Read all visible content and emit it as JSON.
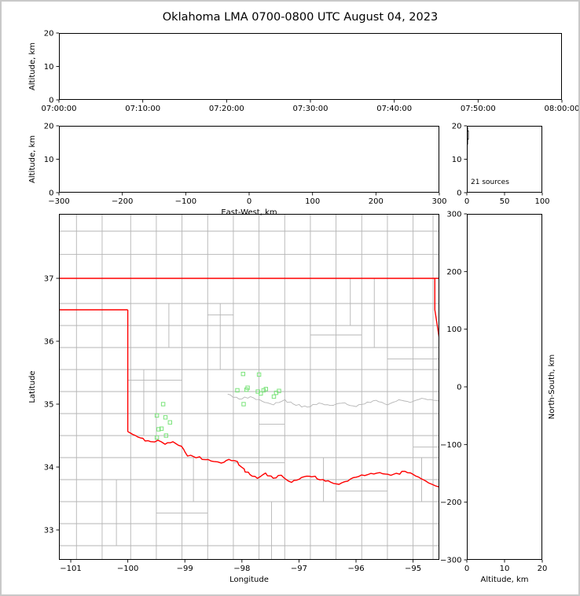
{
  "title": "Oklahoma LMA 0700-0800 UTC August 04, 2023",
  "colors": {
    "frame": "#000000",
    "county_line": "#b5b5b5",
    "state_border": "#ff0000",
    "source_marker": "#7be37b",
    "histogram_line": "#000000"
  },
  "chart_data": [
    {
      "id": "time_height",
      "type": "scatter",
      "xlabel": "",
      "ylabel": "Altitude, km",
      "xlim": [
        0,
        6
      ],
      "ylim": [
        0,
        20
      ],
      "xticks": [
        0,
        1,
        2,
        3,
        4,
        5,
        6
      ],
      "xtick_labels": [
        "07:00:00",
        "07:10:00",
        "07:20:00",
        "07:30:00",
        "07:40:00",
        "07:50:00",
        "08:00:00"
      ],
      "yticks": [
        0,
        10,
        20
      ],
      "points": []
    },
    {
      "id": "ew_height",
      "type": "scatter",
      "xlabel": "East-West, km",
      "ylabel": "Altitude, km",
      "xlim": [
        -300,
        300
      ],
      "ylim": [
        0,
        20
      ],
      "xticks": [
        -300,
        -200,
        -100,
        0,
        100,
        200,
        300
      ],
      "yticks": [
        0,
        10,
        20
      ],
      "points": []
    },
    {
      "id": "alt_histogram",
      "type": "line",
      "annotation": "21 sources",
      "xlim": [
        0,
        100
      ],
      "ylim": [
        0,
        20
      ],
      "xticks": [
        0,
        50,
        100
      ],
      "yticks": [
        0,
        10,
        20
      ],
      "line_count_alt": [
        [
          0,
          0
        ],
        [
          0,
          14.5
        ],
        [
          1,
          14.5
        ],
        [
          1,
          16
        ],
        [
          2,
          16
        ],
        [
          2,
          18.5
        ],
        [
          1,
          18.5
        ],
        [
          1,
          19.5
        ],
        [
          0,
          19.5
        ],
        [
          0,
          20
        ]
      ]
    },
    {
      "id": "plan_view",
      "type": "scatter",
      "xlabel": "Longitude",
      "ylabel": "Latitude",
      "xlim": [
        -101.207,
        -94.54
      ],
      "ylim": [
        32.525,
        38.025
      ],
      "xticks": [
        -101,
        -100,
        -99,
        -98,
        -97,
        -96,
        -95
      ],
      "yticks": [
        33,
        34,
        35,
        36,
        37
      ],
      "sources_lonlat": [
        [
          -97.98,
          35.48
        ],
        [
          -97.7,
          35.47
        ],
        [
          -98.08,
          35.22
        ],
        [
          -97.9,
          35.26
        ],
        [
          -97.72,
          35.2
        ],
        [
          -97.58,
          35.24
        ],
        [
          -97.35,
          35.21
        ],
        [
          -97.44,
          35.12
        ],
        [
          -97.97,
          35.0
        ],
        [
          -97.62,
          35.22
        ],
        [
          -97.67,
          35.17
        ],
        [
          -97.92,
          35.23
        ],
        [
          -97.4,
          35.18
        ],
        [
          -99.38,
          35.0
        ],
        [
          -99.49,
          34.82
        ],
        [
          -99.34,
          34.79
        ],
        [
          -99.26,
          34.71
        ],
        [
          -99.46,
          34.6
        ],
        [
          -99.33,
          34.5
        ],
        [
          -99.49,
          34.47
        ],
        [
          -99.41,
          34.61
        ]
      ],
      "state_border": [
        {
          "name": "kansas-line",
          "pts": [
            [
              -101.21,
              37.0
            ],
            [
              -94.54,
              37.0
            ]
          ]
        },
        {
          "name": "missouri-arkansas-line",
          "pts": [
            [
              -94.618,
              37.0
            ],
            [
              -94.618,
              36.5
            ],
            [
              -94.54,
              36.04
            ]
          ]
        },
        {
          "name": "panhandle-south-line",
          "pts": [
            [
              -101.21,
              36.5
            ],
            [
              -100.0,
              36.5
            ]
          ]
        },
        {
          "name": "west-border-line",
          "pts": [
            [
              -100.0,
              36.5
            ],
            [
              -100.0,
              34.563
            ]
          ]
        },
        {
          "name": "red-river-border",
          "wiggle": true,
          "pts": [
            [
              -100.0,
              34.563
            ],
            [
              -99.87,
              34.5
            ],
            [
              -99.74,
              34.44
            ],
            [
              -99.6,
              34.4
            ],
            [
              -99.47,
              34.43
            ],
            [
              -99.35,
              34.37
            ],
            [
              -99.21,
              34.4
            ],
            [
              -99.06,
              34.33
            ],
            [
              -98.95,
              34.19
            ],
            [
              -98.8,
              34.16
            ],
            [
              -98.64,
              34.12
            ],
            [
              -98.49,
              34.1
            ],
            [
              -98.36,
              34.06
            ],
            [
              -98.23,
              34.12
            ],
            [
              -98.09,
              34.08
            ],
            [
              -97.97,
              33.96
            ],
            [
              -97.86,
              33.88
            ],
            [
              -97.73,
              33.82
            ],
            [
              -97.59,
              33.9
            ],
            [
              -97.45,
              33.82
            ],
            [
              -97.31,
              33.87
            ],
            [
              -97.18,
              33.76
            ],
            [
              -97.04,
              33.79
            ],
            [
              -96.91,
              33.85
            ],
            [
              -96.77,
              33.86
            ],
            [
              -96.63,
              33.8
            ],
            [
              -96.49,
              33.78
            ],
            [
              -96.35,
              33.72
            ],
            [
              -96.2,
              33.76
            ],
            [
              -96.05,
              33.83
            ],
            [
              -95.9,
              33.86
            ],
            [
              -95.74,
              33.89
            ],
            [
              -95.58,
              33.91
            ],
            [
              -95.44,
              33.87
            ],
            [
              -95.29,
              33.89
            ],
            [
              -95.14,
              33.93
            ],
            [
              -95.0,
              33.88
            ],
            [
              -94.86,
              33.82
            ],
            [
              -94.73,
              33.75
            ],
            [
              -94.6,
              33.71
            ],
            [
              -94.53,
              33.68
            ]
          ]
        }
      ],
      "rivers": [
        {
          "name": "canadian-river",
          "wiggle": true,
          "pts": [
            [
              -98.25,
              35.16
            ],
            [
              -98.05,
              35.08
            ],
            [
              -97.85,
              35.12
            ],
            [
              -97.65,
              35.04
            ],
            [
              -97.45,
              35.0
            ],
            [
              -97.25,
              35.06
            ],
            [
              -97.05,
              34.99
            ],
            [
              -96.85,
              34.95
            ],
            [
              -96.65,
              35.02
            ],
            [
              -96.45,
              34.97
            ],
            [
              -96.25,
              35.03
            ],
            [
              -96.05,
              34.96
            ],
            [
              -95.85,
              35.01
            ],
            [
              -95.65,
              35.06
            ],
            [
              -95.45,
              34.99
            ],
            [
              -95.25,
              35.07
            ],
            [
              -95.05,
              35.03
            ],
            [
              -94.85,
              35.09
            ],
            [
              -94.54,
              35.05
            ]
          ]
        }
      ],
      "counties": {
        "h_full": [
          32.75,
          33.1,
          33.45,
          33.8,
          34.15,
          34.5,
          34.85,
          35.2,
          35.55,
          35.9,
          36.25,
          36.6,
          37.38,
          37.75
        ],
        "v_full": [
          -100.9,
          -100.45,
          -99.95,
          -99.5,
          -99.05,
          -98.6,
          -98.15,
          -97.7,
          -97.25,
          -96.8,
          -96.35,
          -95.9,
          -95.45,
          -95.0,
          -94.65
        ],
        "h_partial": [
          {
            "y": 34.07,
            "x1": -98.15,
            "x2": -97.25
          },
          {
            "y": 35.38,
            "x1": -100.0,
            "x2": -99.05
          },
          {
            "y": 36.1,
            "x1": -96.8,
            "x2": -95.9
          },
          {
            "y": 33.62,
            "x1": -96.35,
            "x2": -95.45
          },
          {
            "y": 36.42,
            "x1": -98.6,
            "x2": -98.15
          },
          {
            "y": 33.27,
            "x1": -99.5,
            "x2": -98.6
          },
          {
            "y": 35.72,
            "x1": -95.45,
            "x2": -94.55
          },
          {
            "y": 34.32,
            "x1": -95.0,
            "x2": -94.55
          },
          {
            "y": 34.68,
            "x1": -97.7,
            "x2": -97.25
          }
        ],
        "v_partial": [
          {
            "x": -99.72,
            "y1": 34.5,
            "y2": 35.55
          },
          {
            "x": -98.38,
            "y1": 35.55,
            "y2": 36.6
          },
          {
            "x": -97.48,
            "y1": 32.53,
            "y2": 33.45
          },
          {
            "x": -96.57,
            "y1": 33.45,
            "y2": 34.15
          },
          {
            "x": -95.68,
            "y1": 35.9,
            "y2": 37.0
          },
          {
            "x": -98.85,
            "y1": 33.45,
            "y2": 34.15
          },
          {
            "x": -96.1,
            "y1": 36.25,
            "y2": 37.0
          },
          {
            "x": -99.28,
            "y1": 35.9,
            "y2": 36.6
          },
          {
            "x": -100.2,
            "y1": 32.75,
            "y2": 33.8
          },
          {
            "x": -94.85,
            "y1": 33.45,
            "y2": 34.15
          }
        ]
      }
    },
    {
      "id": "ns_height",
      "type": "scatter",
      "xlabel": "Altitude, km",
      "ylabel": "North-South, km",
      "ylabel_side": "right",
      "xlim": [
        0,
        20
      ],
      "ylim": [
        -300,
        300
      ],
      "xticks": [
        0,
        10,
        20
      ],
      "yticks": [
        -300,
        -200,
        -100,
        0,
        100,
        200,
        300
      ],
      "points": []
    }
  ]
}
